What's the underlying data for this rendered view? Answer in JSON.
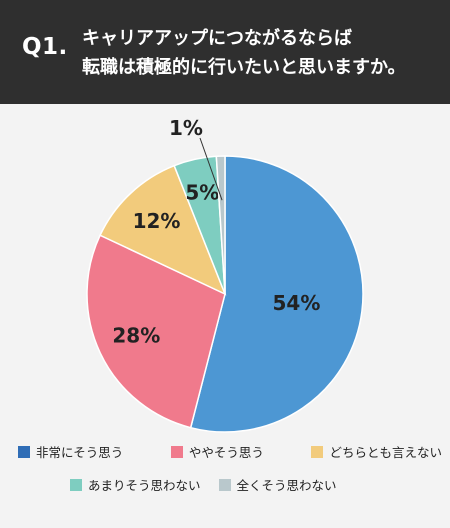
{
  "header": {
    "q_label": "Q1.",
    "line1": "キャリアアップにつながるならば",
    "line2": "転職は積極的に行いたいと思いますか。"
  },
  "chart_data": {
    "type": "pie",
    "title": "",
    "start_angle_deg": 0,
    "direction": "clockwise",
    "slices": [
      {
        "label": "非常にそう思う",
        "value": 54,
        "display": "54%",
        "color": "#4d97d3"
      },
      {
        "label": "ややそう思う",
        "value": 28,
        "display": "28%",
        "color": "#f07a8c"
      },
      {
        "label": "どちらとも言えない",
        "value": 12,
        "display": "12%",
        "color": "#f2cb7c"
      },
      {
        "label": "あまりそう思わない",
        "value": 5,
        "display": "5%",
        "color": "#7ecdc0"
      },
      {
        "label": "全くそう思わない",
        "value": 1,
        "display": "1%",
        "color": "#b9c8cc"
      }
    ],
    "legend": [
      {
        "label": "非常にそう思う",
        "color": "#2f6db6"
      },
      {
        "label": "ややそう思う",
        "color": "#f07a8c"
      },
      {
        "label": "どちらとも言えない",
        "color": "#f2cb7c"
      },
      {
        "label": "あまりそう思わない",
        "color": "#7ecdc0"
      },
      {
        "label": "全くそう思わない",
        "color": "#b9c8cc"
      }
    ],
    "legend_position": "bottom"
  }
}
